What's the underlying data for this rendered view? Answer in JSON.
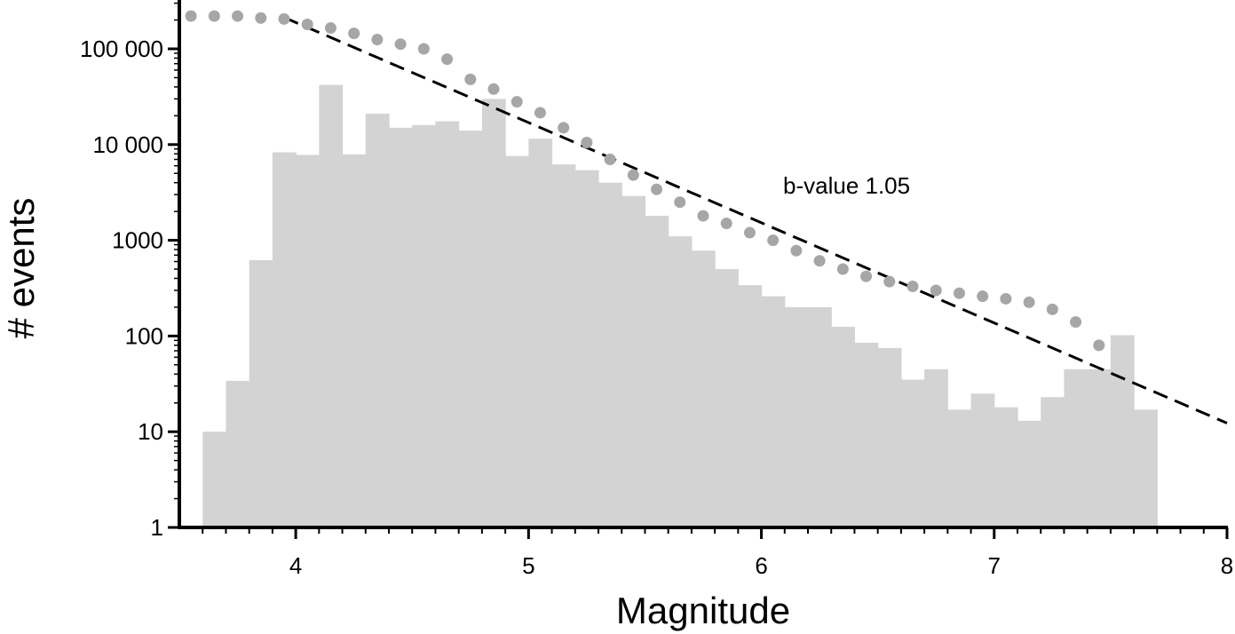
{
  "chart_data": {
    "type": "bar",
    "title": "",
    "xlabel": "Magnitude",
    "ylabel": "# events",
    "xlim": [
      3.5,
      8
    ],
    "ylim": [
      1,
      300000
    ],
    "yscale": "log",
    "x_ticks": [
      4,
      5,
      6,
      7,
      8
    ],
    "x_tick_labels": [
      "4",
      "5",
      "6",
      "7",
      "8"
    ],
    "x_minor_step": 0.1,
    "y_ticks": [
      1,
      10,
      100,
      1000,
      10000,
      100000
    ],
    "y_tick_labels": [
      "1",
      "10",
      "100",
      "1000",
      "10 000",
      "100 000"
    ],
    "grid": false,
    "colors": {
      "histogram": "#d3d3d3",
      "cumulative": "#a6a6a6",
      "fit_line": "#000000"
    },
    "annotation": "b-value 1.05",
    "histogram": {
      "bin_width": 0.1,
      "bin_starts": [
        3.6,
        3.7,
        3.8,
        3.9,
        4.0,
        4.1,
        4.2,
        4.3,
        4.4,
        4.5,
        4.6,
        4.7,
        4.8,
        4.9,
        5.0,
        5.1,
        5.2,
        5.3,
        5.4,
        5.5,
        5.6,
        5.7,
        5.8,
        5.9,
        6.0,
        6.1,
        6.2,
        6.3,
        6.4,
        6.5,
        6.6,
        6.7,
        6.8,
        6.9,
        7.0,
        7.1,
        7.2,
        7.3,
        7.4,
        7.5,
        7.6
      ],
      "values": [
        10,
        34,
        620,
        8300,
        7800,
        42000,
        7900,
        21000,
        15000,
        16000,
        17500,
        14000,
        30000,
        7600,
        11500,
        6200,
        5400,
        4000,
        2900,
        1800,
        1100,
        780,
        500,
        340,
        260,
        200,
        200,
        125,
        85,
        75,
        35,
        45,
        17,
        25,
        18,
        13,
        23,
        45,
        45,
        102,
        17
      ]
    },
    "cumulative": {
      "x": [
        3.55,
        3.65,
        3.75,
        3.85,
        3.95,
        4.05,
        4.15,
        4.25,
        4.35,
        4.45,
        4.55,
        4.65,
        4.75,
        4.85,
        4.95,
        5.05,
        5.15,
        5.25,
        5.35,
        5.45,
        5.55,
        5.65,
        5.75,
        5.85,
        5.95,
        6.05,
        6.15,
        6.25,
        6.35,
        6.45,
        6.55,
        6.65,
        6.75,
        6.85,
        6.95,
        7.05,
        7.15,
        7.25,
        7.35,
        7.45
      ],
      "y": [
        220000,
        220000,
        220000,
        210000,
        205000,
        180000,
        165000,
        145000,
        125000,
        112000,
        100000,
        78000,
        48000,
        38000,
        28000,
        21500,
        15000,
        10500,
        7000,
        4800,
        3400,
        2500,
        1800,
        1500,
        1200,
        1000,
        780,
        610,
        500,
        420,
        370,
        330,
        300,
        280,
        260,
        245,
        225,
        190,
        140,
        80
      ]
    },
    "fit_line": {
      "b_value": 1.05,
      "x": [
        3.95,
        8.0
      ],
      "y": [
        213000,
        12.3
      ]
    }
  }
}
